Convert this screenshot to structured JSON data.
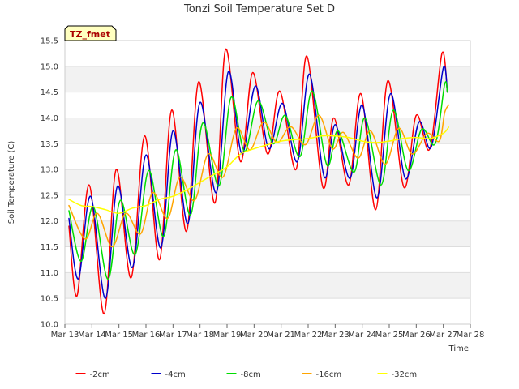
{
  "chart_data": {
    "type": "line",
    "title": "Tonzi Soil Temperature Set D",
    "xlabel": "Time",
    "ylabel": "Soil Temperature (C)",
    "badge": "TZ_fmet",
    "xlim": [
      13,
      28
    ],
    "ylim": [
      10.0,
      15.5
    ],
    "x_ticks": [
      {
        "value": 13,
        "label": "Mar 13"
      },
      {
        "value": 14,
        "label": "Mar 14"
      },
      {
        "value": 15,
        "label": "Mar 15"
      },
      {
        "value": 16,
        "label": "Mar 16"
      },
      {
        "value": 17,
        "label": "Mar 17"
      },
      {
        "value": 18,
        "label": "Mar 18"
      },
      {
        "value": 19,
        "label": "Mar 19"
      },
      {
        "value": 20,
        "label": "Mar 20"
      },
      {
        "value": 21,
        "label": "Mar 21"
      },
      {
        "value": 22,
        "label": "Mar 22"
      },
      {
        "value": 23,
        "label": "Mar 23"
      },
      {
        "value": 24,
        "label": "Mar 24"
      },
      {
        "value": 25,
        "label": "Mar 25"
      },
      {
        "value": 26,
        "label": "Mar 26"
      },
      {
        "value": 27,
        "label": "Mar 27"
      },
      {
        "value": 28,
        "label": "Mar 28"
      }
    ],
    "y_ticks": [
      {
        "value": 10.0,
        "label": "10.0"
      },
      {
        "value": 10.5,
        "label": "10.5"
      },
      {
        "value": 11.0,
        "label": "11.0"
      },
      {
        "value": 11.5,
        "label": "11.5"
      },
      {
        "value": 12.0,
        "label": "12.0"
      },
      {
        "value": 12.5,
        "label": "12.5"
      },
      {
        "value": 13.0,
        "label": "13.0"
      },
      {
        "value": 13.5,
        "label": "13.5"
      },
      {
        "value": 14.0,
        "label": "14.0"
      },
      {
        "value": 14.5,
        "label": "14.5"
      },
      {
        "value": 15.0,
        "label": "15.0"
      },
      {
        "value": 15.5,
        "label": "15.5"
      }
    ],
    "grid": true,
    "legend_position": "bottom-center",
    "series": [
      {
        "name": "-2cm",
        "color": "#ff0000",
        "points": [
          [
            13.15,
            11.9
          ],
          [
            13.45,
            10.55
          ],
          [
            13.9,
            12.7
          ],
          [
            14.45,
            10.2
          ],
          [
            14.9,
            13.0
          ],
          [
            15.45,
            10.9
          ],
          [
            15.95,
            13.65
          ],
          [
            16.5,
            11.25
          ],
          [
            16.95,
            14.15
          ],
          [
            17.5,
            11.8
          ],
          [
            17.95,
            14.7
          ],
          [
            18.55,
            12.35
          ],
          [
            18.95,
            15.33
          ],
          [
            19.5,
            13.15
          ],
          [
            19.95,
            14.88
          ],
          [
            20.5,
            13.3
          ],
          [
            20.95,
            14.52
          ],
          [
            21.55,
            13.0
          ],
          [
            21.95,
            15.2
          ],
          [
            22.55,
            12.65
          ],
          [
            22.95,
            14.0
          ],
          [
            23.5,
            12.7
          ],
          [
            23.95,
            14.47
          ],
          [
            24.5,
            12.22
          ],
          [
            24.95,
            14.72
          ],
          [
            25.55,
            12.65
          ],
          [
            26.0,
            14.05
          ],
          [
            26.5,
            13.4
          ],
          [
            26.95,
            15.25
          ],
          [
            27.15,
            14.5
          ]
        ]
      },
      {
        "name": "-4cm",
        "color": "#0000cc",
        "points": [
          [
            13.15,
            12.05
          ],
          [
            13.5,
            10.88
          ],
          [
            13.95,
            12.48
          ],
          [
            14.5,
            10.5
          ],
          [
            14.95,
            12.68
          ],
          [
            15.5,
            11.1
          ],
          [
            16.0,
            13.28
          ],
          [
            16.55,
            11.48
          ],
          [
            17.0,
            13.75
          ],
          [
            17.55,
            11.95
          ],
          [
            18.0,
            14.3
          ],
          [
            18.6,
            12.55
          ],
          [
            19.05,
            14.9
          ],
          [
            19.55,
            13.3
          ],
          [
            20.05,
            14.62
          ],
          [
            20.55,
            13.4
          ],
          [
            21.05,
            14.28
          ],
          [
            21.6,
            13.15
          ],
          [
            22.05,
            14.85
          ],
          [
            22.6,
            12.85
          ],
          [
            23.0,
            13.87
          ],
          [
            23.55,
            12.83
          ],
          [
            24.0,
            14.25
          ],
          [
            24.55,
            12.45
          ],
          [
            25.05,
            14.47
          ],
          [
            25.6,
            12.82
          ],
          [
            26.1,
            13.92
          ],
          [
            26.55,
            13.43
          ],
          [
            27.0,
            14.97
          ],
          [
            27.15,
            14.5
          ]
        ]
      },
      {
        "name": "-8cm",
        "color": "#00dd00",
        "points": [
          [
            13.15,
            12.2
          ],
          [
            13.6,
            11.22
          ],
          [
            14.05,
            12.28
          ],
          [
            14.6,
            10.87
          ],
          [
            15.05,
            12.4
          ],
          [
            15.6,
            11.35
          ],
          [
            16.1,
            12.98
          ],
          [
            16.65,
            11.7
          ],
          [
            17.1,
            13.38
          ],
          [
            17.65,
            12.12
          ],
          [
            18.1,
            13.9
          ],
          [
            18.7,
            12.68
          ],
          [
            19.15,
            14.4
          ],
          [
            19.65,
            13.35
          ],
          [
            20.15,
            14.33
          ],
          [
            20.7,
            13.5
          ],
          [
            21.15,
            14.05
          ],
          [
            21.7,
            13.25
          ],
          [
            22.15,
            14.52
          ],
          [
            22.7,
            13.08
          ],
          [
            23.1,
            13.75
          ],
          [
            23.7,
            12.95
          ],
          [
            24.1,
            14.0
          ],
          [
            24.7,
            12.7
          ],
          [
            25.15,
            14.15
          ],
          [
            25.7,
            12.98
          ],
          [
            26.2,
            13.78
          ],
          [
            26.7,
            13.5
          ],
          [
            27.05,
            14.65
          ],
          [
            27.15,
            14.5
          ]
        ]
      },
      {
        "name": "-16cm",
        "color": "#ffa500",
        "points": [
          [
            13.15,
            12.3
          ],
          [
            13.75,
            11.65
          ],
          [
            14.2,
            12.15
          ],
          [
            14.75,
            11.5
          ],
          [
            15.25,
            12.15
          ],
          [
            15.8,
            11.75
          ],
          [
            16.25,
            12.55
          ],
          [
            16.8,
            12.05
          ],
          [
            17.25,
            12.85
          ],
          [
            17.8,
            12.4
          ],
          [
            18.3,
            13.3
          ],
          [
            18.85,
            12.85
          ],
          [
            19.35,
            13.8
          ],
          [
            19.85,
            13.38
          ],
          [
            20.35,
            13.92
          ],
          [
            20.85,
            13.52
          ],
          [
            21.35,
            13.83
          ],
          [
            21.9,
            13.48
          ],
          [
            22.4,
            14.05
          ],
          [
            22.9,
            13.4
          ],
          [
            23.3,
            13.72
          ],
          [
            23.85,
            13.22
          ],
          [
            24.3,
            13.75
          ],
          [
            24.85,
            13.1
          ],
          [
            25.35,
            13.8
          ],
          [
            25.85,
            13.3
          ],
          [
            26.4,
            13.7
          ],
          [
            26.85,
            13.55
          ],
          [
            27.05,
            14.1
          ],
          [
            27.2,
            14.25
          ]
        ]
      },
      {
        "name": "-32cm",
        "color": "#ffff00",
        "points": [
          [
            13.15,
            12.42
          ],
          [
            13.6,
            12.3
          ],
          [
            14.0,
            12.28
          ],
          [
            14.5,
            12.22
          ],
          [
            15.0,
            12.15
          ],
          [
            15.5,
            12.25
          ],
          [
            16.0,
            12.3
          ],
          [
            16.5,
            12.42
          ],
          [
            17.0,
            12.48
          ],
          [
            17.5,
            12.6
          ],
          [
            18.0,
            12.75
          ],
          [
            18.5,
            12.9
          ],
          [
            19.0,
            13.05
          ],
          [
            19.5,
            13.3
          ],
          [
            20.0,
            13.4
          ],
          [
            20.5,
            13.48
          ],
          [
            21.0,
            13.55
          ],
          [
            21.5,
            13.58
          ],
          [
            22.0,
            13.6
          ],
          [
            22.5,
            13.65
          ],
          [
            23.0,
            13.65
          ],
          [
            23.5,
            13.62
          ],
          [
            24.0,
            13.55
          ],
          [
            24.5,
            13.52
          ],
          [
            25.0,
            13.55
          ],
          [
            25.5,
            13.6
          ],
          [
            26.0,
            13.62
          ],
          [
            26.5,
            13.6
          ],
          [
            27.0,
            13.7
          ],
          [
            27.2,
            13.82
          ]
        ]
      }
    ]
  }
}
